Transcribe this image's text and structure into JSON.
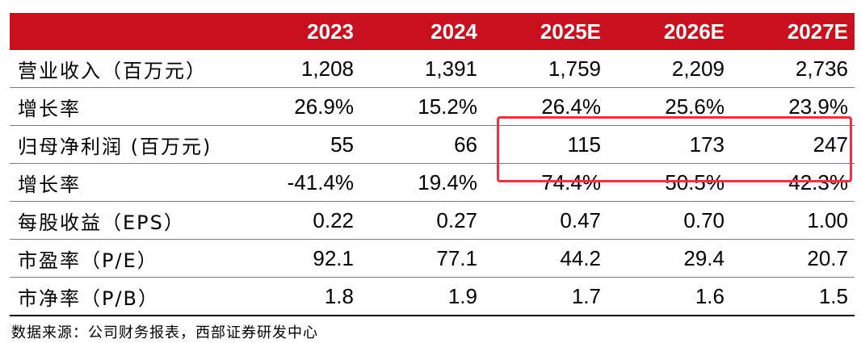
{
  "table": {
    "header": [
      "",
      "2023",
      "2024",
      "2025E",
      "2026E",
      "2027E"
    ],
    "rows": [
      {
        "label": "营业收入（百万元）",
        "values": [
          "1,208",
          "1,391",
          "1,759",
          "2,209",
          "2,736"
        ]
      },
      {
        "label": "增长率",
        "values": [
          "26.9%",
          "15.2%",
          "26.4%",
          "25.6%",
          "23.9%"
        ]
      },
      {
        "label": "归母净利润 (百万元)",
        "values": [
          "55",
          "66",
          "115",
          "173",
          "247"
        ]
      },
      {
        "label": "增长率",
        "values": [
          "-41.4%",
          "19.4%",
          "74.4%",
          "50.5%",
          "42.3%"
        ]
      },
      {
        "label": "每股收益（EPS）",
        "values": [
          "0.22",
          "0.27",
          "0.47",
          "0.70",
          "1.00"
        ]
      },
      {
        "label": "市盈率（P/E）",
        "values": [
          "92.1",
          "77.1",
          "44.2",
          "29.4",
          "20.7"
        ]
      },
      {
        "label": "市净率（P/B）",
        "values": [
          "1.8",
          "1.9",
          "1.7",
          "1.6",
          "1.5"
        ]
      }
    ]
  },
  "source": "数据来源：公司财务报表，西部证券研发中心",
  "colors": {
    "header_bg": "#c8101e",
    "header_text": "#ffffff",
    "highlight_border": "#e8353f"
  }
}
